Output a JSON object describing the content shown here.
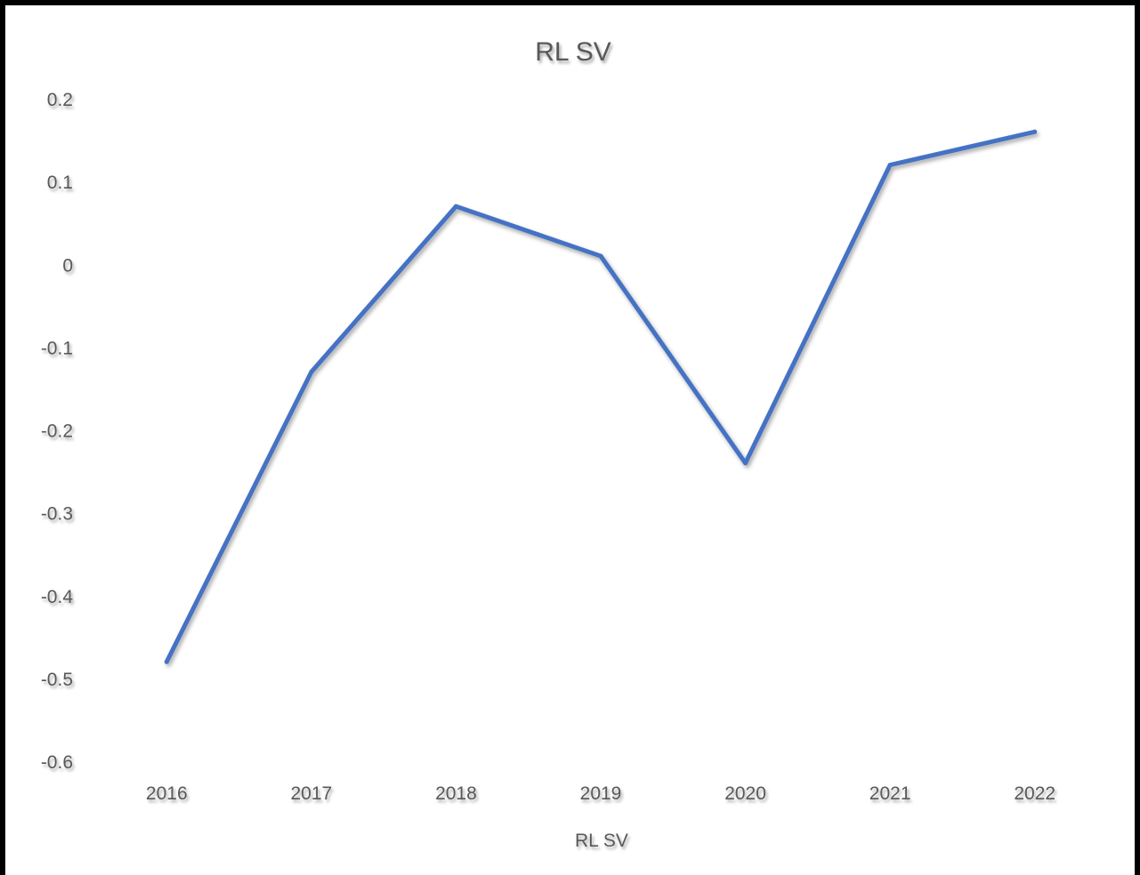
{
  "chart_data": {
    "type": "line",
    "title": "RL SV",
    "xlabel": "",
    "ylabel": "",
    "categories": [
      "2016",
      "2017",
      "2018",
      "2019",
      "2020",
      "2021",
      "2022"
    ],
    "series": [
      {
        "name": "RL SV",
        "color": "#4472C4",
        "values": [
          -0.48,
          -0.13,
          0.07,
          0.01,
          -0.24,
          0.12,
          0.16
        ]
      }
    ],
    "ylim": [
      -0.6,
      0.2
    ],
    "yticks": [
      "0.2",
      "0.1",
      "0",
      "-0.1",
      "-0.2",
      "-0.3",
      "-0.4",
      "-0.5",
      "-0.6"
    ],
    "grid": true,
    "legend": "bottom"
  }
}
